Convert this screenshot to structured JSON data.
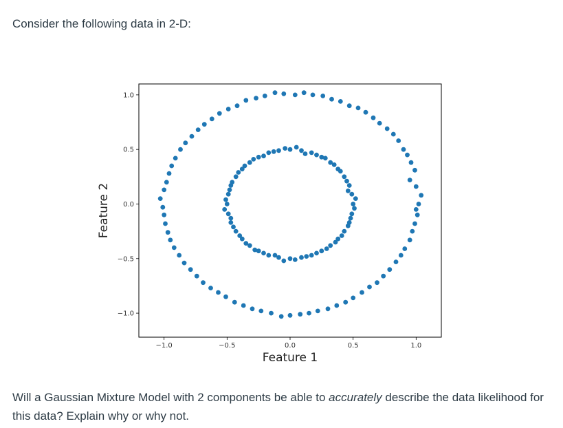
{
  "intro_text": "Consider the following data in 2-D:",
  "question": {
    "before": "Will a Gaussian Mixture Model with 2 components be able to ",
    "emphasis": "accurately",
    "after": " describe the data likelihood for this data? Explain why or why not."
  },
  "chart_data": {
    "type": "scatter",
    "xlabel": "Feature 1",
    "ylabel": "Feature 2",
    "xlim": [
      -1.2,
      1.2
    ],
    "ylim": [
      -1.22,
      1.1
    ],
    "xticks": [
      -1.0,
      -0.5,
      0.0,
      0.5,
      1.0
    ],
    "xtick_labels": [
      "−1.0",
      "−0.5",
      "0.0",
      "0.5",
      "1.0"
    ],
    "yticks": [
      1.0,
      0.5,
      0.0,
      -0.5,
      -1.0
    ],
    "ytick_labels": [
      "1.0",
      "0.5",
      "0.0",
      "−0.5",
      "−1.0"
    ],
    "grid": false,
    "marker_color": "#1f77b4",
    "series": [
      {
        "points": [
          [
            1.02,
            0.0
          ],
          [
            1.0,
            0.16
          ],
          [
            0.99,
            0.31
          ],
          [
            0.93,
            0.45
          ],
          [
            0.86,
            0.58
          ],
          [
            0.77,
            0.69
          ],
          [
            0.66,
            0.79
          ],
          [
            0.54,
            0.88
          ],
          [
            0.4,
            0.94
          ],
          [
            0.26,
            0.99
          ],
          [
            0.11,
            1.02
          ],
          [
            -0.05,
            1.01
          ],
          [
            -0.2,
            0.99
          ],
          [
            -0.35,
            0.95
          ],
          [
            -0.49,
            0.87
          ],
          [
            -0.62,
            0.78
          ],
          [
            -0.73,
            0.68
          ],
          [
            -0.83,
            0.56
          ],
          [
            -0.91,
            0.42
          ],
          [
            -0.96,
            0.28
          ],
          [
            -1.0,
            0.13
          ],
          [
            -1.01,
            -0.03
          ],
          [
            -0.99,
            -0.18
          ],
          [
            -0.95,
            -0.33
          ],
          [
            -0.88,
            -0.47
          ],
          [
            -0.79,
            -0.6
          ],
          [
            -0.69,
            -0.72
          ],
          [
            -0.57,
            -0.81
          ],
          [
            -0.44,
            -0.9
          ],
          [
            -0.3,
            -0.96
          ],
          [
            -0.15,
            -1.0
          ],
          [
            0.0,
            -1.02
          ],
          [
            0.15,
            -1.0
          ],
          [
            0.3,
            -0.96
          ],
          [
            0.44,
            -0.9
          ],
          [
            0.57,
            -0.81
          ],
          [
            0.69,
            -0.72
          ],
          [
            0.79,
            -0.6
          ],
          [
            0.88,
            -0.47
          ],
          [
            0.95,
            -0.33
          ],
          [
            0.99,
            -0.18
          ],
          [
            1.04,
            0.08
          ],
          [
            0.96,
            0.38
          ],
          [
            0.82,
            0.64
          ],
          [
            0.6,
            0.84
          ],
          [
            0.33,
            0.96
          ],
          [
            0.04,
            1.0
          ],
          [
            -0.27,
            0.97
          ],
          [
            -0.56,
            0.83
          ],
          [
            -0.78,
            0.62
          ],
          [
            -0.94,
            0.35
          ],
          [
            -1.03,
            0.05
          ],
          [
            -0.97,
            -0.26
          ],
          [
            -0.84,
            -0.54
          ],
          [
            -0.63,
            -0.77
          ],
          [
            -0.37,
            -0.93
          ],
          [
            -0.07,
            -1.03
          ],
          [
            0.22,
            -0.98
          ],
          [
            0.5,
            -0.86
          ],
          [
            0.74,
            -0.66
          ],
          [
            0.91,
            -0.41
          ],
          [
            1.01,
            -0.1
          ],
          [
            0.95,
            0.22
          ],
          [
            0.9,
            0.5
          ],
          [
            0.71,
            0.74
          ],
          [
            0.47,
            0.9
          ],
          [
            0.18,
            1.0
          ],
          [
            -0.12,
            1.02
          ],
          [
            -0.42,
            0.9
          ],
          [
            -0.68,
            0.73
          ],
          [
            -0.87,
            0.5
          ],
          [
            -0.98,
            0.2
          ],
          [
            -1.0,
            -0.1
          ],
          [
            -0.92,
            -0.4
          ],
          [
            -0.74,
            -0.66
          ],
          [
            -0.51,
            -0.85
          ],
          [
            -0.23,
            -0.98
          ],
          [
            0.08,
            -1.01
          ],
          [
            0.37,
            -0.93
          ],
          [
            0.63,
            -0.76
          ],
          [
            0.84,
            -0.53
          ],
          [
            0.97,
            -0.25
          ],
          [
            1.0,
            -0.05
          ]
        ]
      },
      {
        "points": [
          [
            0.5,
            0.0
          ],
          [
            0.49,
            0.09
          ],
          [
            0.47,
            0.17
          ],
          [
            0.43,
            0.25
          ],
          [
            0.38,
            0.32
          ],
          [
            0.32,
            0.38
          ],
          [
            0.25,
            0.43
          ],
          [
            0.17,
            0.47
          ],
          [
            0.09,
            0.49
          ],
          [
            0.0,
            0.5
          ],
          [
            -0.09,
            0.49
          ],
          [
            -0.17,
            0.47
          ],
          [
            -0.25,
            0.43
          ],
          [
            -0.32,
            0.38
          ],
          [
            -0.38,
            0.32
          ],
          [
            -0.43,
            0.25
          ],
          [
            -0.47,
            0.17
          ],
          [
            -0.49,
            0.09
          ],
          [
            -0.5,
            0.0
          ],
          [
            -0.49,
            -0.09
          ],
          [
            -0.47,
            -0.17
          ],
          [
            -0.43,
            -0.25
          ],
          [
            -0.38,
            -0.32
          ],
          [
            -0.32,
            -0.38
          ],
          [
            -0.25,
            -0.43
          ],
          [
            -0.17,
            -0.47
          ],
          [
            -0.09,
            -0.49
          ],
          [
            0.0,
            -0.5
          ],
          [
            0.09,
            -0.49
          ],
          [
            0.17,
            -0.47
          ],
          [
            0.25,
            -0.43
          ],
          [
            0.32,
            -0.38
          ],
          [
            0.38,
            -0.32
          ],
          [
            0.43,
            -0.25
          ],
          [
            0.47,
            -0.17
          ],
          [
            0.49,
            -0.09
          ],
          [
            0.52,
            0.05
          ],
          [
            0.45,
            0.21
          ],
          [
            0.35,
            0.36
          ],
          [
            0.21,
            0.45
          ],
          [
            0.05,
            0.52
          ],
          [
            -0.13,
            0.48
          ],
          [
            -0.29,
            0.41
          ],
          [
            -0.41,
            0.29
          ],
          [
            -0.48,
            0.13
          ],
          [
            -0.52,
            -0.05
          ],
          [
            -0.45,
            -0.21
          ],
          [
            -0.35,
            -0.36
          ],
          [
            -0.21,
            -0.45
          ],
          [
            -0.05,
            -0.52
          ],
          [
            0.13,
            -0.48
          ],
          [
            0.29,
            -0.41
          ],
          [
            0.41,
            -0.29
          ],
          [
            0.48,
            -0.13
          ],
          [
            0.46,
            0.12
          ],
          [
            0.4,
            0.3
          ],
          [
            0.28,
            0.42
          ],
          [
            0.12,
            0.46
          ],
          [
            -0.04,
            0.51
          ],
          [
            -0.21,
            0.44
          ],
          [
            -0.36,
            0.35
          ],
          [
            -0.46,
            0.2
          ],
          [
            -0.51,
            0.04
          ],
          [
            -0.47,
            -0.13
          ],
          [
            -0.4,
            -0.29
          ],
          [
            -0.28,
            -0.42
          ],
          [
            -0.12,
            -0.47
          ],
          [
            0.04,
            -0.51
          ],
          [
            0.21,
            -0.45
          ],
          [
            0.36,
            -0.35
          ],
          [
            0.46,
            -0.2
          ],
          [
            0.51,
            -0.04
          ]
        ]
      }
    ]
  }
}
